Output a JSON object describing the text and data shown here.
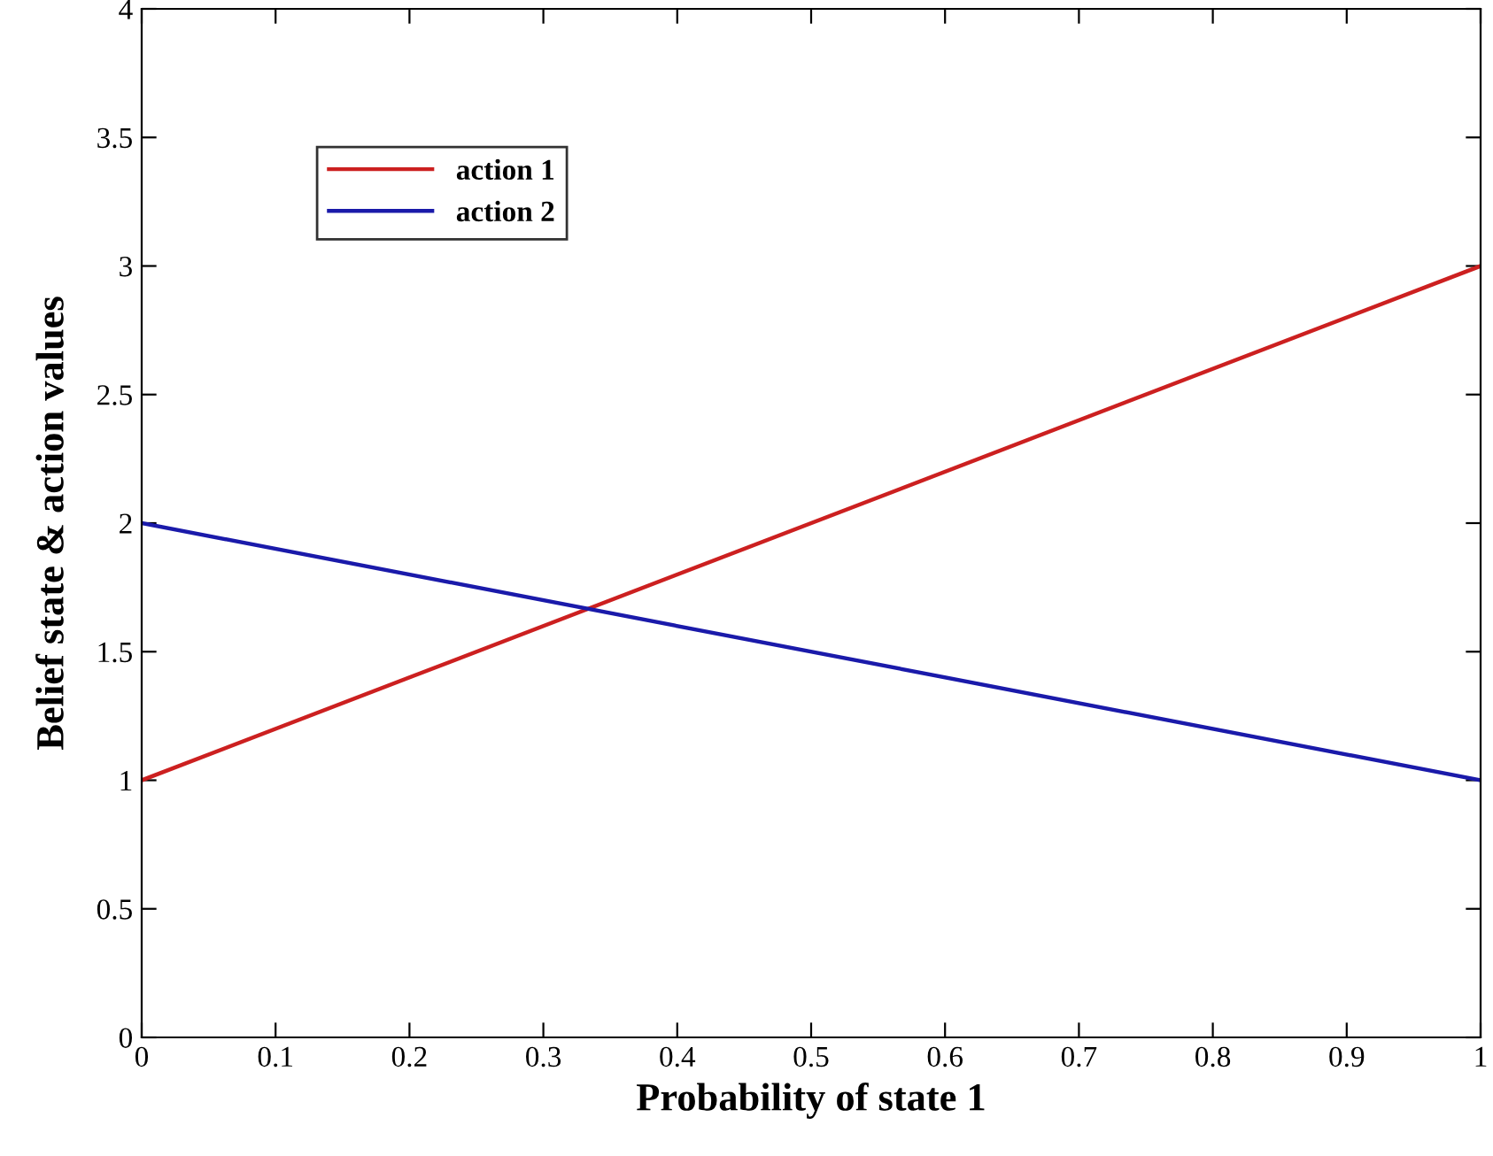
{
  "chart_data": {
    "type": "line",
    "xlabel": "Probability of state 1",
    "ylabel": "Belief state & action values",
    "x": [
      0,
      1
    ],
    "series": [
      {
        "name": "action 1",
        "color": "#cc2020",
        "values": [
          1,
          3
        ]
      },
      {
        "name": "action 2",
        "color": "#1a1aaa",
        "values": [
          2,
          1
        ]
      }
    ],
    "xlim": [
      0,
      1
    ],
    "ylim": [
      0,
      4
    ],
    "xticks": [
      0,
      0.1,
      0.2,
      0.3,
      0.4,
      0.5,
      0.6,
      0.7,
      0.8,
      0.9,
      1
    ],
    "yticks": [
      0,
      0.5,
      1,
      1.5,
      2,
      2.5,
      3,
      3.5,
      4
    ],
    "grid": false,
    "legend": "top left",
    "marker": "none",
    "line_style": "solid"
  }
}
